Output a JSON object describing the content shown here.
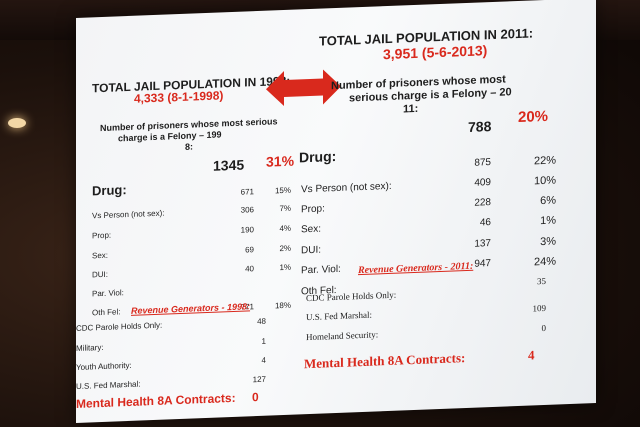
{
  "slide": {
    "left_panel": {
      "title": "TOTAL JAIL POPULATION IN 1998:",
      "subtitle": "4,333 (8-1-1998)",
      "description_lines": [
        "Number of prisoners whose most serious",
        "charge is a Felony – 199",
        "8:"
      ],
      "header_number": "1345",
      "header_percent": "31%",
      "rows": [
        {
          "label": "Drug:",
          "number": "671",
          "percent": "15%"
        },
        {
          "label": "Vs Person (not sex):",
          "number": "306",
          "percent": "7%"
        },
        {
          "label": "Prop:",
          "number": "190",
          "percent": "4%"
        },
        {
          "label": "Sex:",
          "number": "69",
          "percent": "2%"
        },
        {
          "label": "DUI:",
          "number": "40",
          "percent": "1%"
        },
        {
          "label": "Par. Viol:",
          "number": "771",
          "percent": "18%"
        },
        {
          "label": "Oth Fel:",
          "number": "",
          "percent": ""
        }
      ],
      "revenue_title": "Revenue Generators - 1998:",
      "generators": [
        {
          "label": "CDC Parole Holds Only:",
          "value": "48"
        },
        {
          "label": "Military:",
          "value": "1"
        },
        {
          "label": "Youth Authority:",
          "value": "4"
        },
        {
          "label": "U.S. Fed Marshal:",
          "value": "127"
        }
      ],
      "mental_health_label": "Mental Health 8A Contracts:",
      "mental_health_value": "0"
    },
    "right_panel": {
      "title": "TOTAL JAIL POPULATION IN 2011:",
      "subtitle": "3,951 (5-6-2013)",
      "description_lines": [
        "Number of prisoners whose most",
        "serious charge is a Felony – 20",
        "11:"
      ],
      "header_number": "788",
      "header_percent": "20%",
      "rows": [
        {
          "label": "Drug:",
          "number": "875",
          "percent": "22%"
        },
        {
          "label": "Vs Person (not sex):",
          "number": "409",
          "percent": "10%"
        },
        {
          "label": "Prop:",
          "number": "228",
          "percent": "6%"
        },
        {
          "label": "Sex:",
          "number": "46",
          "percent": "1%"
        },
        {
          "label": "DUI:",
          "number": "137",
          "percent": "3%"
        },
        {
          "label": "Par. Viol:",
          "number": "947",
          "percent": "24%"
        },
        {
          "label": "Oth Fel:",
          "number": "",
          "percent": ""
        }
      ],
      "revenue_title": "Revenue Generators - 2011:",
      "generators": [
        {
          "label": "CDC Parole Holds Only:",
          "value": "35"
        },
        {
          "label": "U.S. Fed Marshal:",
          "value": "109"
        },
        {
          "label": "Homeland Security:",
          "value": "0"
        }
      ],
      "mental_health_label": "Mental Health 8A Contracts:",
      "mental_health_value": "4"
    }
  },
  "colors": {
    "accent_red": "#d9291d",
    "screen_white": "#f5f6f7",
    "room_dark": "#1b100b"
  }
}
